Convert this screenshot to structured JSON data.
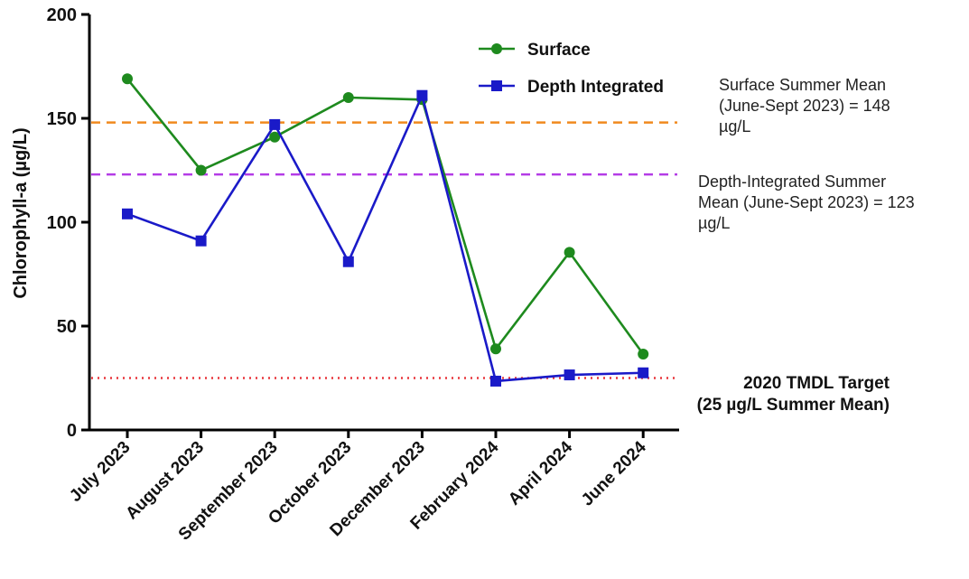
{
  "chart_data": {
    "type": "line",
    "title": "",
    "xlabel": "",
    "ylabel": "Chlorophyll-a (µg/L)",
    "ylim": [
      0,
      200
    ],
    "yticks": [
      0,
      50,
      100,
      150,
      200
    ],
    "grid": false,
    "legend_placement": "top-center",
    "categories": [
      "July 2023",
      "August 2023",
      "September 2023",
      "October 2023",
      "December 2023",
      "February 2024",
      "April 2024",
      "June 2024"
    ],
    "series": [
      {
        "name": "Surface",
        "marker": "circle",
        "color": "#1e8a1e",
        "values": [
          169,
          125,
          141,
          160,
          159,
          39,
          85.5,
          36.5
        ]
      },
      {
        "name": "Depth Integrated",
        "marker": "square",
        "color": "#1a1ac8",
        "values": [
          104,
          91,
          147,
          81,
          161,
          23.5,
          26.5,
          27.5
        ]
      }
    ],
    "reference_lines": [
      {
        "name": "surface-mean-line",
        "value": 148,
        "style": "dashed",
        "color": "#f08a1e",
        "label_lines": [
          "Surface Summer Mean",
          "(June-Sept 2023) = 148",
          "µg/L"
        ],
        "bold": false
      },
      {
        "name": "depth-mean-line",
        "value": 123,
        "style": "dashed",
        "color": "#b43ce6",
        "label_lines": [
          "Depth-Integrated Summer",
          "Mean (June-Sept 2023) = 123",
          "µg/L"
        ],
        "bold": false
      },
      {
        "name": "tmdl-target-line",
        "value": 25,
        "style": "dotted",
        "color": "#e8363c",
        "label_lines": [
          "2020 TMDL Target",
          "(25 µg/L Summer Mean)"
        ],
        "bold": true
      }
    ]
  }
}
